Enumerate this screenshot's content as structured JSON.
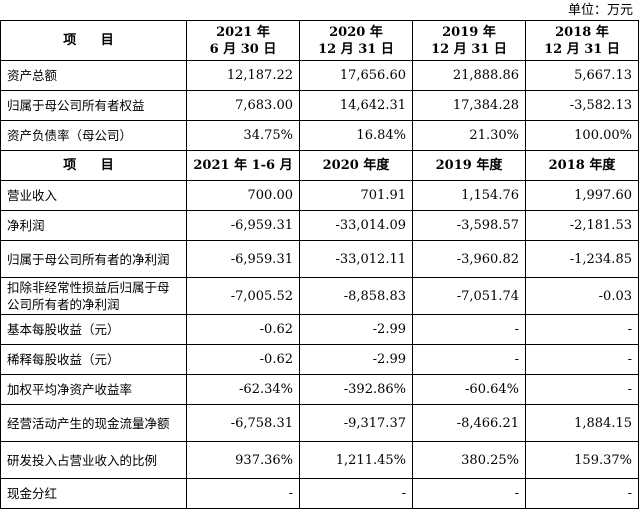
{
  "unit_label": "单位：万元",
  "header1": {
    "item": "项 目",
    "cols": [
      [
        "2021 年",
        "6 月 30 日"
      ],
      [
        "2020 年",
        "12 月 31 日"
      ],
      [
        "2019 年",
        "12 月 31 日"
      ],
      [
        "2018 年",
        "12 月 31 日"
      ]
    ]
  },
  "balance_rows": [
    {
      "label": "资产总额",
      "values": [
        "12,187.22",
        "17,656.60",
        "21,888.86",
        "5,667.13"
      ]
    },
    {
      "label": "归属于母公司所有者权益",
      "values": [
        "7,683.00",
        "14,642.31",
        "17,384.28",
        "-3,582.13"
      ]
    },
    {
      "label": "资产负债率（母公司）",
      "values": [
        "34.75%",
        "16.84%",
        "21.30%",
        "100.00%"
      ]
    }
  ],
  "header2": {
    "item": "项 目",
    "cols": [
      "2021 年 1-6 月",
      "2020 年度",
      "2019 年度",
      "2018 年度"
    ]
  },
  "income_rows": [
    {
      "label": "营业收入",
      "values": [
        "700.00",
        "701.91",
        "1,154.76",
        "1,997.60"
      ]
    },
    {
      "label": "净利润",
      "values": [
        "-6,959.31",
        "-33,014.09",
        "-3,598.57",
        "-2,181.53"
      ]
    },
    {
      "label": "归属于母公司所有者的净利润",
      "values": [
        "-6,959.31",
        "-33,012.11",
        "-3,960.82",
        "-1,234.85"
      ]
    },
    {
      "label": "扣除非经常性损益后归属于母公司所有者的净利润",
      "values": [
        "-7,005.52",
        "-8,858.83",
        "-7,051.74",
        "-0.03"
      ]
    },
    {
      "label": "基本每股收益（元）",
      "values": [
        "-0.62",
        "-2.99",
        "-",
        "-"
      ]
    },
    {
      "label": "稀释每股收益（元）",
      "values": [
        "-0.62",
        "-2.99",
        "-",
        "-"
      ]
    },
    {
      "label": "加权平均净资产收益率",
      "values": [
        "-62.34%",
        "-392.86%",
        "-60.64%",
        "-"
      ]
    },
    {
      "label": "经营活动产生的现金流量净额",
      "values": [
        "-6,758.31",
        "-9,317.37",
        "-8,466.21",
        "1,884.15"
      ]
    },
    {
      "label": "研发投入占营业收入的比例",
      "values": [
        "937.36%",
        "1,211.45%",
        "380.25%",
        "159.37%"
      ]
    },
    {
      "label": "现金分红",
      "values": [
        "-",
        "-",
        "-",
        "-"
      ]
    }
  ]
}
